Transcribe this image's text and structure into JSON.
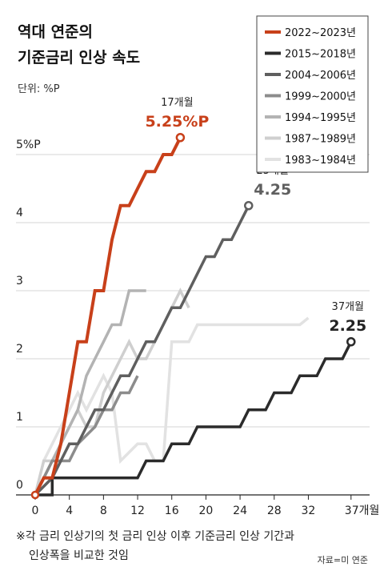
{
  "title_lines": [
    "역대 연준의",
    "기준금리 인상 속도"
  ],
  "unit_label": "단위: %P",
  "footnote_lines": [
    "※각 금리 인상기의 첫 금리 인상 이후 기준금리 인상 기간과",
    "인상폭을 비교한 것임"
  ],
  "source": "자료=미 연준",
  "colors": {
    "s2022": "#c8401a",
    "s2015": "#2b2b2b",
    "s2004": "#5f5f5f",
    "s1999": "#8c8c8c",
    "s1994": "#b3b3b3",
    "s1987": "#cfcfcf",
    "s1983": "#e2e2e2"
  },
  "annotations": [
    {
      "months_label": "17개월",
      "value_label": "5.25%P"
    },
    {
      "months_label": "25개월",
      "value_label": "4.25"
    },
    {
      "months_label": "37개월",
      "value_label": "2.25"
    }
  ],
  "chart_data": {
    "type": "line",
    "title": "역대 연준의 기준금리 인상 속도",
    "ylabel": "단위: %P",
    "xlim": [
      0,
      38
    ],
    "ylim": [
      0,
      5.5
    ],
    "x_ticks": [
      0,
      4,
      8,
      12,
      16,
      20,
      24,
      28,
      32,
      37
    ],
    "x_tick_labels": [
      "0",
      "4",
      "8",
      "12",
      "16",
      "20",
      "24",
      "28",
      "32",
      "37개월"
    ],
    "y_ticks": [
      0,
      1,
      2,
      3,
      4,
      5
    ],
    "y_tick_labels": [
      "0",
      "1",
      "2",
      "3",
      "4",
      "5%P"
    ],
    "legend_position": "top-right",
    "series": [
      {
        "name": "2022~2023년",
        "color_key": "s2022",
        "width": 4,
        "marker_end": true,
        "points": [
          [
            0,
            0
          ],
          [
            1,
            0.25
          ],
          [
            2,
            0.25
          ],
          [
            3,
            0.75
          ],
          [
            4,
            1.5
          ],
          [
            5,
            2.25
          ],
          [
            6,
            2.25
          ],
          [
            7,
            3.0
          ],
          [
            8,
            3.0
          ],
          [
            9,
            3.75
          ],
          [
            10,
            4.25
          ],
          [
            11,
            4.25
          ],
          [
            12,
            4.5
          ],
          [
            13,
            4.75
          ],
          [
            14,
            4.75
          ],
          [
            15,
            5.0
          ],
          [
            16,
            5.0
          ],
          [
            17,
            5.25
          ]
        ]
      },
      {
        "name": "2015~2018년",
        "color_key": "s2015",
        "width": 3.5,
        "marker_end": true,
        "points": [
          [
            0,
            0
          ],
          [
            2,
            0
          ],
          [
            2,
            0.25
          ],
          [
            12,
            0.25
          ],
          [
            13,
            0.5
          ],
          [
            15,
            0.5
          ],
          [
            16,
            0.75
          ],
          [
            18,
            0.75
          ],
          [
            19,
            1.0
          ],
          [
            24,
            1.0
          ],
          [
            25,
            1.25
          ],
          [
            27,
            1.25
          ],
          [
            28,
            1.5
          ],
          [
            30,
            1.5
          ],
          [
            31,
            1.75
          ],
          [
            33,
            1.75
          ],
          [
            34,
            2.0
          ],
          [
            36,
            2.0
          ],
          [
            37,
            2.25
          ]
        ]
      },
      {
        "name": "2004~2006년",
        "color_key": "s2004",
        "width": 3.5,
        "marker_end": true,
        "points": [
          [
            0,
            0
          ],
          [
            2,
            0.25
          ],
          [
            3,
            0.5
          ],
          [
            4,
            0.75
          ],
          [
            5,
            0.75
          ],
          [
            6,
            1.0
          ],
          [
            7,
            1.25
          ],
          [
            8,
            1.25
          ],
          [
            9,
            1.5
          ],
          [
            10,
            1.75
          ],
          [
            11,
            1.75
          ],
          [
            12,
            2.0
          ],
          [
            13,
            2.25
          ],
          [
            14,
            2.25
          ],
          [
            15,
            2.5
          ],
          [
            16,
            2.75
          ],
          [
            17,
            2.75
          ],
          [
            18,
            3.0
          ],
          [
            19,
            3.25
          ],
          [
            20,
            3.5
          ],
          [
            21,
            3.5
          ],
          [
            22,
            3.75
          ],
          [
            23,
            3.75
          ],
          [
            24,
            4.0
          ],
          [
            25,
            4.25
          ]
        ]
      },
      {
        "name": "1999~2000년",
        "color_key": "s1999",
        "width": 3.5,
        "marker_end": false,
        "points": [
          [
            0,
            0
          ],
          [
            1,
            0.25
          ],
          [
            2,
            0.5
          ],
          [
            4,
            0.5
          ],
          [
            5,
            0.75
          ],
          [
            7,
            1.0
          ],
          [
            8,
            1.25
          ],
          [
            9,
            1.25
          ],
          [
            10,
            1.5
          ],
          [
            11,
            1.5
          ],
          [
            12,
            1.75
          ]
        ]
      },
      {
        "name": "1994~1995년",
        "color_key": "s1994",
        "width": 3.5,
        "marker_end": false,
        "points": [
          [
            0,
            0
          ],
          [
            1,
            0.25
          ],
          [
            2,
            0.5
          ],
          [
            3,
            0.75
          ],
          [
            4,
            1.0
          ],
          [
            5,
            1.25
          ],
          [
            6,
            1.75
          ],
          [
            7,
            2.0
          ],
          [
            8,
            2.25
          ],
          [
            9,
            2.5
          ],
          [
            10,
            2.5
          ],
          [
            11,
            3.0
          ],
          [
            13,
            3.0
          ]
        ]
      },
      {
        "name": "1987~1989년",
        "color_key": "s1987",
        "width": 3.5,
        "marker_end": false,
        "points": [
          [
            0,
            0
          ],
          [
            1,
            0.5
          ],
          [
            2,
            0.5
          ],
          [
            3,
            0.75
          ],
          [
            4,
            1.0
          ],
          [
            5,
            1.25
          ],
          [
            6,
            1.0
          ],
          [
            7,
            1.0
          ],
          [
            8,
            1.5
          ],
          [
            9,
            1.75
          ],
          [
            10,
            2.0
          ],
          [
            11,
            2.25
          ],
          [
            12,
            2.0
          ],
          [
            13,
            2.0
          ],
          [
            14,
            2.25
          ],
          [
            15,
            2.5
          ],
          [
            16,
            2.75
          ],
          [
            17,
            3.0
          ],
          [
            18,
            2.75
          ]
        ]
      },
      {
        "name": "1983~1984년",
        "color_key": "s1983",
        "width": 3.5,
        "marker_end": false,
        "points": [
          [
            0,
            0
          ],
          [
            1,
            0.5
          ],
          [
            2,
            0.75
          ],
          [
            3,
            1.0
          ],
          [
            4,
            1.25
          ],
          [
            5,
            1.5
          ],
          [
            6,
            1.25
          ],
          [
            7,
            1.5
          ],
          [
            8,
            1.75
          ],
          [
            9,
            1.5
          ],
          [
            10,
            0.5
          ],
          [
            12,
            0.75
          ],
          [
            13,
            0.75
          ],
          [
            14,
            0.5
          ],
          [
            15,
            0.5
          ],
          [
            16,
            2.25
          ],
          [
            17,
            2.25
          ],
          [
            18,
            2.25
          ],
          [
            19,
            2.5
          ],
          [
            31,
            2.5
          ],
          [
            32,
            2.6
          ]
        ]
      }
    ]
  }
}
